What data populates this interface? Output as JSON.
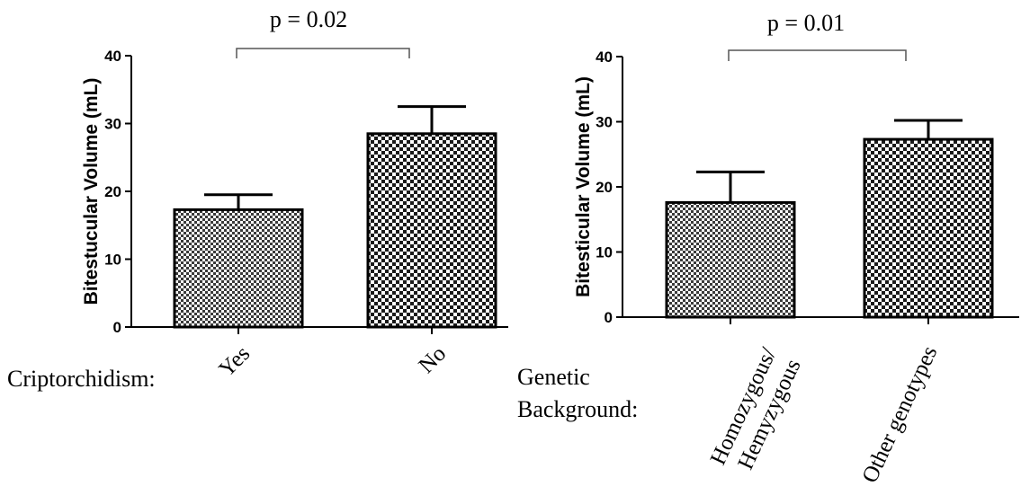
{
  "chart_data": [
    {
      "type": "bar",
      "pvalue_label": "p = 0.02",
      "group_label": "Criptorchidism:",
      "ylabel": "Bitestucular Volume (mL)",
      "ylim": [
        0,
        40
      ],
      "yticks": [
        "0",
        "10",
        "20",
        "30",
        "40"
      ],
      "categories": [
        "Yes",
        "No"
      ],
      "values": [
        17.3,
        28.5
      ],
      "errors": [
        2.2,
        4.0
      ],
      "patterns": [
        "fine-check",
        "coarse-check"
      ]
    },
    {
      "type": "bar",
      "pvalue_label": "p = 0.01",
      "group_label": [
        "Genetic",
        "Background:"
      ],
      "ylabel": "Bitesticular Volume (mL)",
      "ylim": [
        0,
        40
      ],
      "yticks": [
        "0",
        "10",
        "20",
        "30",
        "40"
      ],
      "categories": [
        [
          "Homozygous/",
          "Hemyzygous"
        ],
        [
          "Other genotypes"
        ]
      ],
      "values": [
        17.6,
        27.3
      ],
      "errors": [
        4.7,
        2.9
      ],
      "patterns": [
        "fine-check",
        "coarse-check"
      ]
    }
  ]
}
